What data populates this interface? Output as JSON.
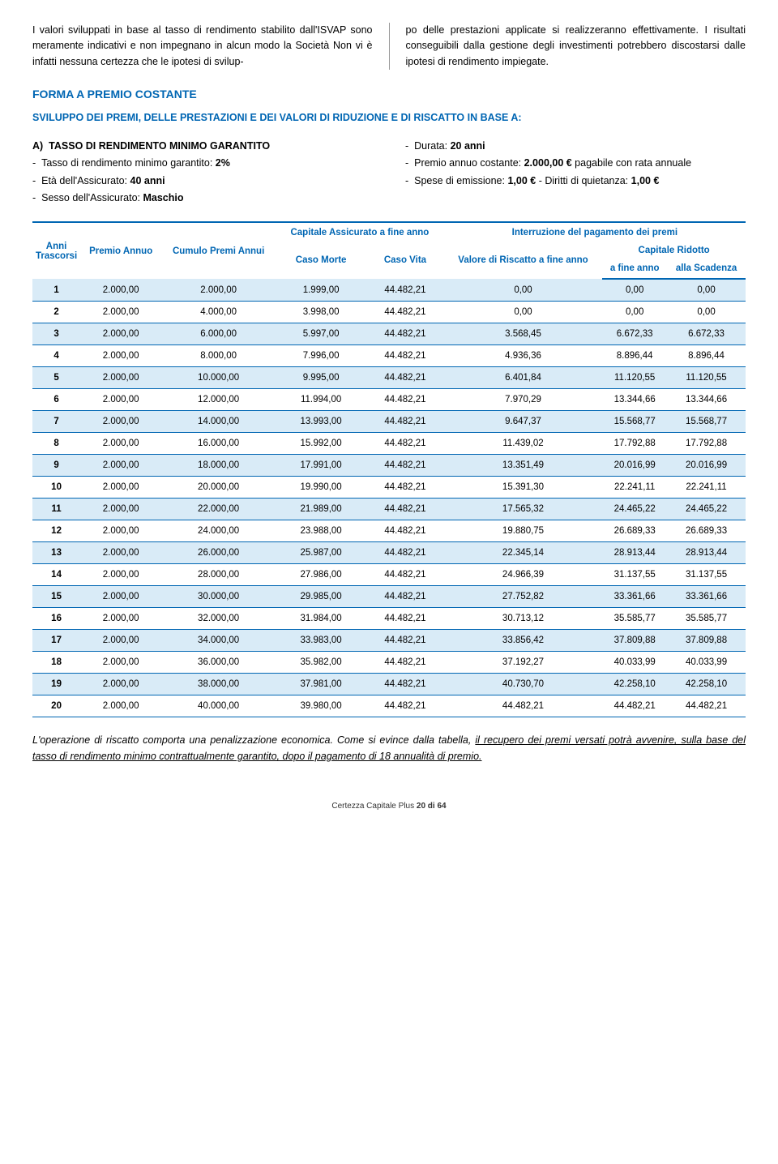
{
  "intro_left": "I valori sviluppati in base al tasso di rendimento stabilito dall'ISVAP sono meramente indicativi e non impegnano in alcun modo la Società\nNon vi è infatti nessuna certezza che le ipotesi di svilup-",
  "intro_right": "po delle prestazioni applicate si realizzeranno effettivamente. I risultati conseguibili dalla gestione degli investimenti potrebbero discostarsi dalle ipotesi di rendimento impiegate.",
  "heading": "FORMA A PREMIO COSTANTE",
  "subheading": "SVILUPPO DEI PREMI, DELLE PRESTAZIONI E DEI VALORI DI RIDUZIONE E DI RISCATTO IN BASE A:",
  "scenario_left": {
    "a": "A)",
    "a_title": "TASSO DI RENDIMENTO MINIMO GARANTITO",
    "l1_pre": "Tasso di rendimento minimo garantito: ",
    "l1_val": "2%",
    "l2_pre": "Età dell'Assicurato: ",
    "l2_val": "40 anni",
    "l3_pre": "Sesso dell'Assicurato: ",
    "l3_val": "Maschio"
  },
  "scenario_right": {
    "r1_pre": "Durata: ",
    "r1_val": "20 anni",
    "r2_pre": "Premio annuo costante: ",
    "r2_val": "2.000,00 €",
    "r2_post": " pagabile con rata annuale",
    "r3_pre": "Spese di emissione: ",
    "r3_val": "1,00 €",
    "r3_mid": " - Diritti di quietanza: ",
    "r3_val2": "1,00 €"
  },
  "table": {
    "head": {
      "anni": "Anni Trascorsi",
      "premio": "Premio Annuo",
      "cumulo": "Cumulo Premi Annui",
      "capitale": "Capitale Assicurato a fine anno",
      "morte": "Caso Morte",
      "vita": "Caso Vita",
      "interr": "Interruzione del pagamento dei premi",
      "riscatto": "Valore di Riscatto a fine anno",
      "ridotto": "Capitale Ridotto",
      "fineanno": "a fine anno",
      "scadenza": "alla Scadenza"
    },
    "colors": {
      "accent": "#0066b3",
      "row_odd": "#d9ebf7",
      "row_even": "#ffffff"
    },
    "rows": [
      [
        "1",
        "2.000,00",
        "2.000,00",
        "1.999,00",
        "44.482,21",
        "0,00",
        "0,00",
        "0,00"
      ],
      [
        "2",
        "2.000,00",
        "4.000,00",
        "3.998,00",
        "44.482,21",
        "0,00",
        "0,00",
        "0,00"
      ],
      [
        "3",
        "2.000,00",
        "6.000,00",
        "5.997,00",
        "44.482,21",
        "3.568,45",
        "6.672,33",
        "6.672,33"
      ],
      [
        "4",
        "2.000,00",
        "8.000,00",
        "7.996,00",
        "44.482,21",
        "4.936,36",
        "8.896,44",
        "8.896,44"
      ],
      [
        "5",
        "2.000,00",
        "10.000,00",
        "9.995,00",
        "44.482,21",
        "6.401,84",
        "11.120,55",
        "11.120,55"
      ],
      [
        "6",
        "2.000,00",
        "12.000,00",
        "11.994,00",
        "44.482,21",
        "7.970,29",
        "13.344,66",
        "13.344,66"
      ],
      [
        "7",
        "2.000,00",
        "14.000,00",
        "13.993,00",
        "44.482,21",
        "9.647,37",
        "15.568,77",
        "15.568,77"
      ],
      [
        "8",
        "2.000,00",
        "16.000,00",
        "15.992,00",
        "44.482,21",
        "11.439,02",
        "17.792,88",
        "17.792,88"
      ],
      [
        "9",
        "2.000,00",
        "18.000,00",
        "17.991,00",
        "44.482,21",
        "13.351,49",
        "20.016,99",
        "20.016,99"
      ],
      [
        "10",
        "2.000,00",
        "20.000,00",
        "19.990,00",
        "44.482,21",
        "15.391,30",
        "22.241,11",
        "22.241,11"
      ],
      [
        "11",
        "2.000,00",
        "22.000,00",
        "21.989,00",
        "44.482,21",
        "17.565,32",
        "24.465,22",
        "24.465,22"
      ],
      [
        "12",
        "2.000,00",
        "24.000,00",
        "23.988,00",
        "44.482,21",
        "19.880,75",
        "26.689,33",
        "26.689,33"
      ],
      [
        "13",
        "2.000,00",
        "26.000,00",
        "25.987,00",
        "44.482,21",
        "22.345,14",
        "28.913,44",
        "28.913,44"
      ],
      [
        "14",
        "2.000,00",
        "28.000,00",
        "27.986,00",
        "44.482,21",
        "24.966,39",
        "31.137,55",
        "31.137,55"
      ],
      [
        "15",
        "2.000,00",
        "30.000,00",
        "29.985,00",
        "44.482,21",
        "27.752,82",
        "33.361,66",
        "33.361,66"
      ],
      [
        "16",
        "2.000,00",
        "32.000,00",
        "31.984,00",
        "44.482,21",
        "30.713,12",
        "35.585,77",
        "35.585,77"
      ],
      [
        "17",
        "2.000,00",
        "34.000,00",
        "33.983,00",
        "44.482,21",
        "33.856,42",
        "37.809,88",
        "37.809,88"
      ],
      [
        "18",
        "2.000,00",
        "36.000,00",
        "35.982,00",
        "44.482,21",
        "37.192,27",
        "40.033,99",
        "40.033,99"
      ],
      [
        "19",
        "2.000,00",
        "38.000,00",
        "37.981,00",
        "44.482,21",
        "40.730,70",
        "42.258,10",
        "42.258,10"
      ],
      [
        "20",
        "2.000,00",
        "40.000,00",
        "39.980,00",
        "44.482,21",
        "44.482,21",
        "44.482,21",
        "44.482,21"
      ]
    ]
  },
  "footnote_pre": "L'operazione di riscatto comporta una penalizzazione economica. Come si evince dalla tabella, ",
  "footnote_u": "il recupero dei premi versati potrà avvenire, sulla base del tasso di rendimento minimo contrattualmente garantito, dopo il pagamento di 18 annualità di premio.",
  "footer_label": "Certezza Capitale Plus ",
  "footer_page": "20 di 64"
}
